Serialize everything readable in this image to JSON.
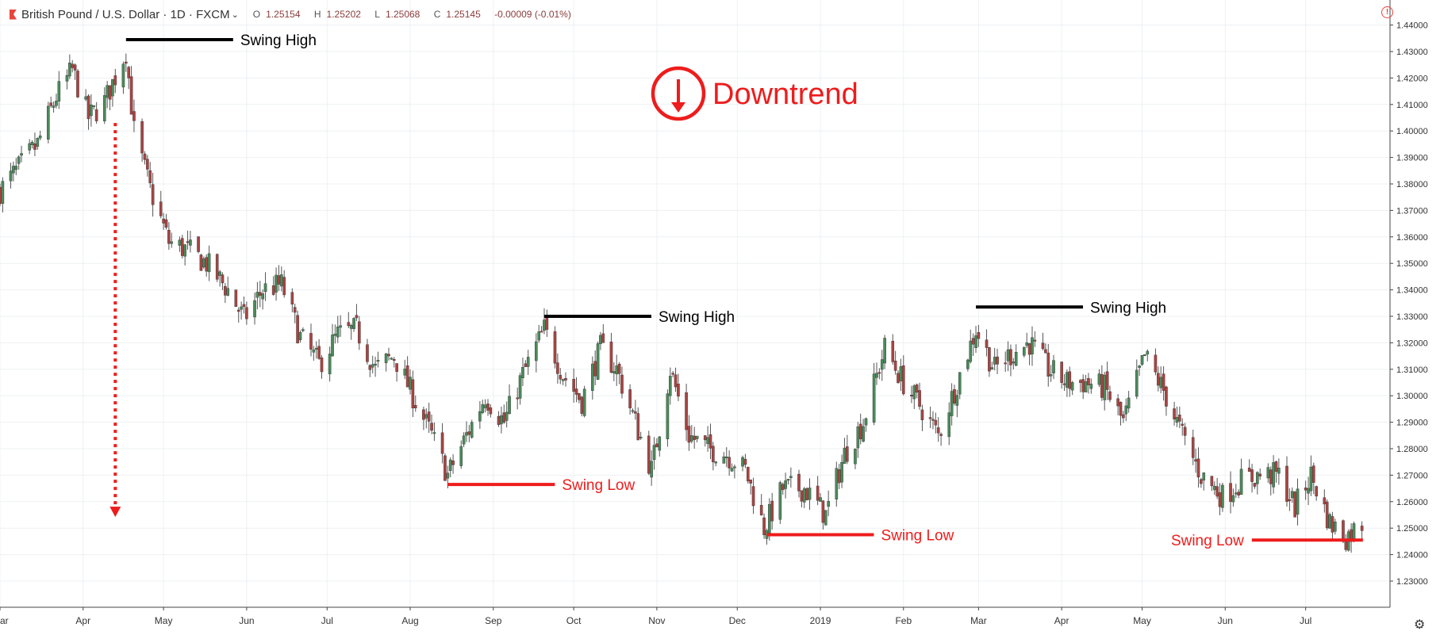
{
  "header": {
    "symbol": "British Pound / U.S. Dollar · 1D · FXCM",
    "open_label": "O",
    "open": "1.25154",
    "high_label": "H",
    "high": "1.25202",
    "low_label": "L",
    "low": "1.25068",
    "close_label": "C",
    "close": "1.25145",
    "change": "-0.00009 (-0.01%)"
  },
  "icons": {
    "alert": "alert-icon",
    "settings": "gear-icon",
    "symbol_flag": "flag-icon"
  },
  "colors": {
    "up": "#4a8a5a",
    "down": "#a94442",
    "swing_high": "#000000",
    "swing_low": "#ee1c1c",
    "grid": "#eef0f3"
  },
  "chart_data": {
    "type": "candlestick",
    "title": "",
    "y_axis": {
      "ticks": [
        "1.44000",
        "1.43000",
        "1.42000",
        "1.41000",
        "1.40000",
        "1.39000",
        "1.38000",
        "1.37000",
        "1.36000",
        "1.35000",
        "1.34000",
        "1.33000",
        "1.32000",
        "1.31000",
        "1.30000",
        "1.29000",
        "1.28000",
        "1.27000",
        "1.26000",
        "1.25000",
        "1.24000",
        "1.23000"
      ],
      "range": [
        1.228,
        1.444
      ],
      "position": "right"
    },
    "x_axis": {
      "labels": [
        "ar",
        "Apr",
        "May",
        "Jun",
        "Jul",
        "Aug",
        "Sep",
        "Oct",
        "Nov",
        "Dec",
        "2019",
        "Feb",
        "Mar",
        "Apr",
        "May",
        "Jun",
        "Jul"
      ],
      "period": "Mar 2018 – Jul 2019, daily"
    },
    "grid": true,
    "trend_label": "Downtrend",
    "annotations": [
      {
        "label": "Swing High",
        "type": "swing_high",
        "date": "2018-04-17",
        "price": 1.4345
      },
      {
        "label": "Swing Low",
        "type": "swing_low",
        "date": "2018-08-15",
        "price": 1.2665
      },
      {
        "label": "Swing High",
        "type": "swing_high",
        "date": "2018-09-20",
        "price": 1.33
      },
      {
        "label": "Swing Low",
        "type": "swing_low",
        "date": "2018-12-12",
        "price": 1.2475
      },
      {
        "label": "Swing High",
        "type": "swing_high",
        "date": "2019-02-28",
        "price": 1.3335
      },
      {
        "label": "Swing Low",
        "type": "swing_low",
        "date": "2019-07-12",
        "price": 1.2455
      }
    ],
    "decline_arrow": {
      "from_price": 1.403,
      "to_price": 1.2545
    },
    "close_path": [
      [
        "2018-03-01",
        1.3775
      ],
      [
        "2018-03-08",
        1.386
      ],
      [
        "2018-03-15",
        1.395
      ],
      [
        "2018-03-22",
        1.413
      ],
      [
        "2018-03-28",
        1.423
      ],
      [
        "2018-04-03",
        1.405
      ],
      [
        "2018-04-09",
        1.411
      ],
      [
        "2018-04-17",
        1.43
      ],
      [
        "2018-04-20",
        1.4
      ],
      [
        "2018-04-26",
        1.378
      ],
      [
        "2018-05-03",
        1.358
      ],
      [
        "2018-05-10",
        1.355
      ],
      [
        "2018-05-17",
        1.35
      ],
      [
        "2018-05-25",
        1.34
      ],
      [
        "2018-05-31",
        1.329
      ],
      [
        "2018-06-07",
        1.34
      ],
      [
        "2018-06-14",
        1.342
      ],
      [
        "2018-06-21",
        1.322
      ],
      [
        "2018-06-28",
        1.312
      ],
      [
        "2018-07-05",
        1.323
      ],
      [
        "2018-07-12",
        1.325
      ],
      [
        "2018-07-19",
        1.31
      ],
      [
        "2018-07-26",
        1.315
      ],
      [
        "2018-08-02",
        1.3
      ],
      [
        "2018-08-09",
        1.285
      ],
      [
        "2018-08-15",
        1.27
      ],
      [
        "2018-08-22",
        1.285
      ],
      [
        "2018-08-29",
        1.3
      ],
      [
        "2018-09-05",
        1.29
      ],
      [
        "2018-09-12",
        1.308
      ],
      [
        "2018-09-20",
        1.325
      ],
      [
        "2018-09-27",
        1.308
      ],
      [
        "2018-10-04",
        1.298
      ],
      [
        "2018-10-11",
        1.318
      ],
      [
        "2018-10-17",
        1.31
      ],
      [
        "2018-10-24",
        1.29
      ],
      [
        "2018-10-30",
        1.272
      ],
      [
        "2018-11-06",
        1.31
      ],
      [
        "2018-11-13",
        1.285
      ],
      [
        "2018-11-20",
        1.28
      ],
      [
        "2018-11-27",
        1.278
      ],
      [
        "2018-12-04",
        1.272
      ],
      [
        "2018-12-11",
        1.25
      ],
      [
        "2018-12-18",
        1.265
      ],
      [
        "2018-12-26",
        1.265
      ],
      [
        "2019-01-03",
        1.255
      ],
      [
        "2019-01-10",
        1.278
      ],
      [
        "2019-01-17",
        1.29
      ],
      [
        "2019-01-25",
        1.318
      ],
      [
        "2019-02-01",
        1.305
      ],
      [
        "2019-02-08",
        1.295
      ],
      [
        "2019-02-14",
        1.285
      ],
      [
        "2019-02-21",
        1.305
      ],
      [
        "2019-02-28",
        1.325
      ],
      [
        "2019-03-07",
        1.31
      ],
      [
        "2019-03-12",
        1.315
      ],
      [
        "2019-03-20",
        1.32
      ],
      [
        "2019-03-27",
        1.31
      ],
      [
        "2019-04-03",
        1.305
      ],
      [
        "2019-04-10",
        1.305
      ],
      [
        "2019-04-17",
        1.303
      ],
      [
        "2019-04-24",
        1.29
      ],
      [
        "2019-05-02",
        1.315
      ],
      [
        "2019-05-09",
        1.302
      ],
      [
        "2019-05-16",
        1.285
      ],
      [
        "2019-05-23",
        1.27
      ],
      [
        "2019-05-31",
        1.262
      ],
      [
        "2019-06-07",
        1.268
      ],
      [
        "2019-06-14",
        1.27
      ],
      [
        "2019-06-21",
        1.27
      ],
      [
        "2019-06-27",
        1.258
      ],
      [
        "2019-07-03",
        1.27
      ],
      [
        "2019-07-10",
        1.252
      ],
      [
        "2019-07-16",
        1.2465
      ],
      [
        "2019-07-22",
        1.252
      ]
    ]
  }
}
